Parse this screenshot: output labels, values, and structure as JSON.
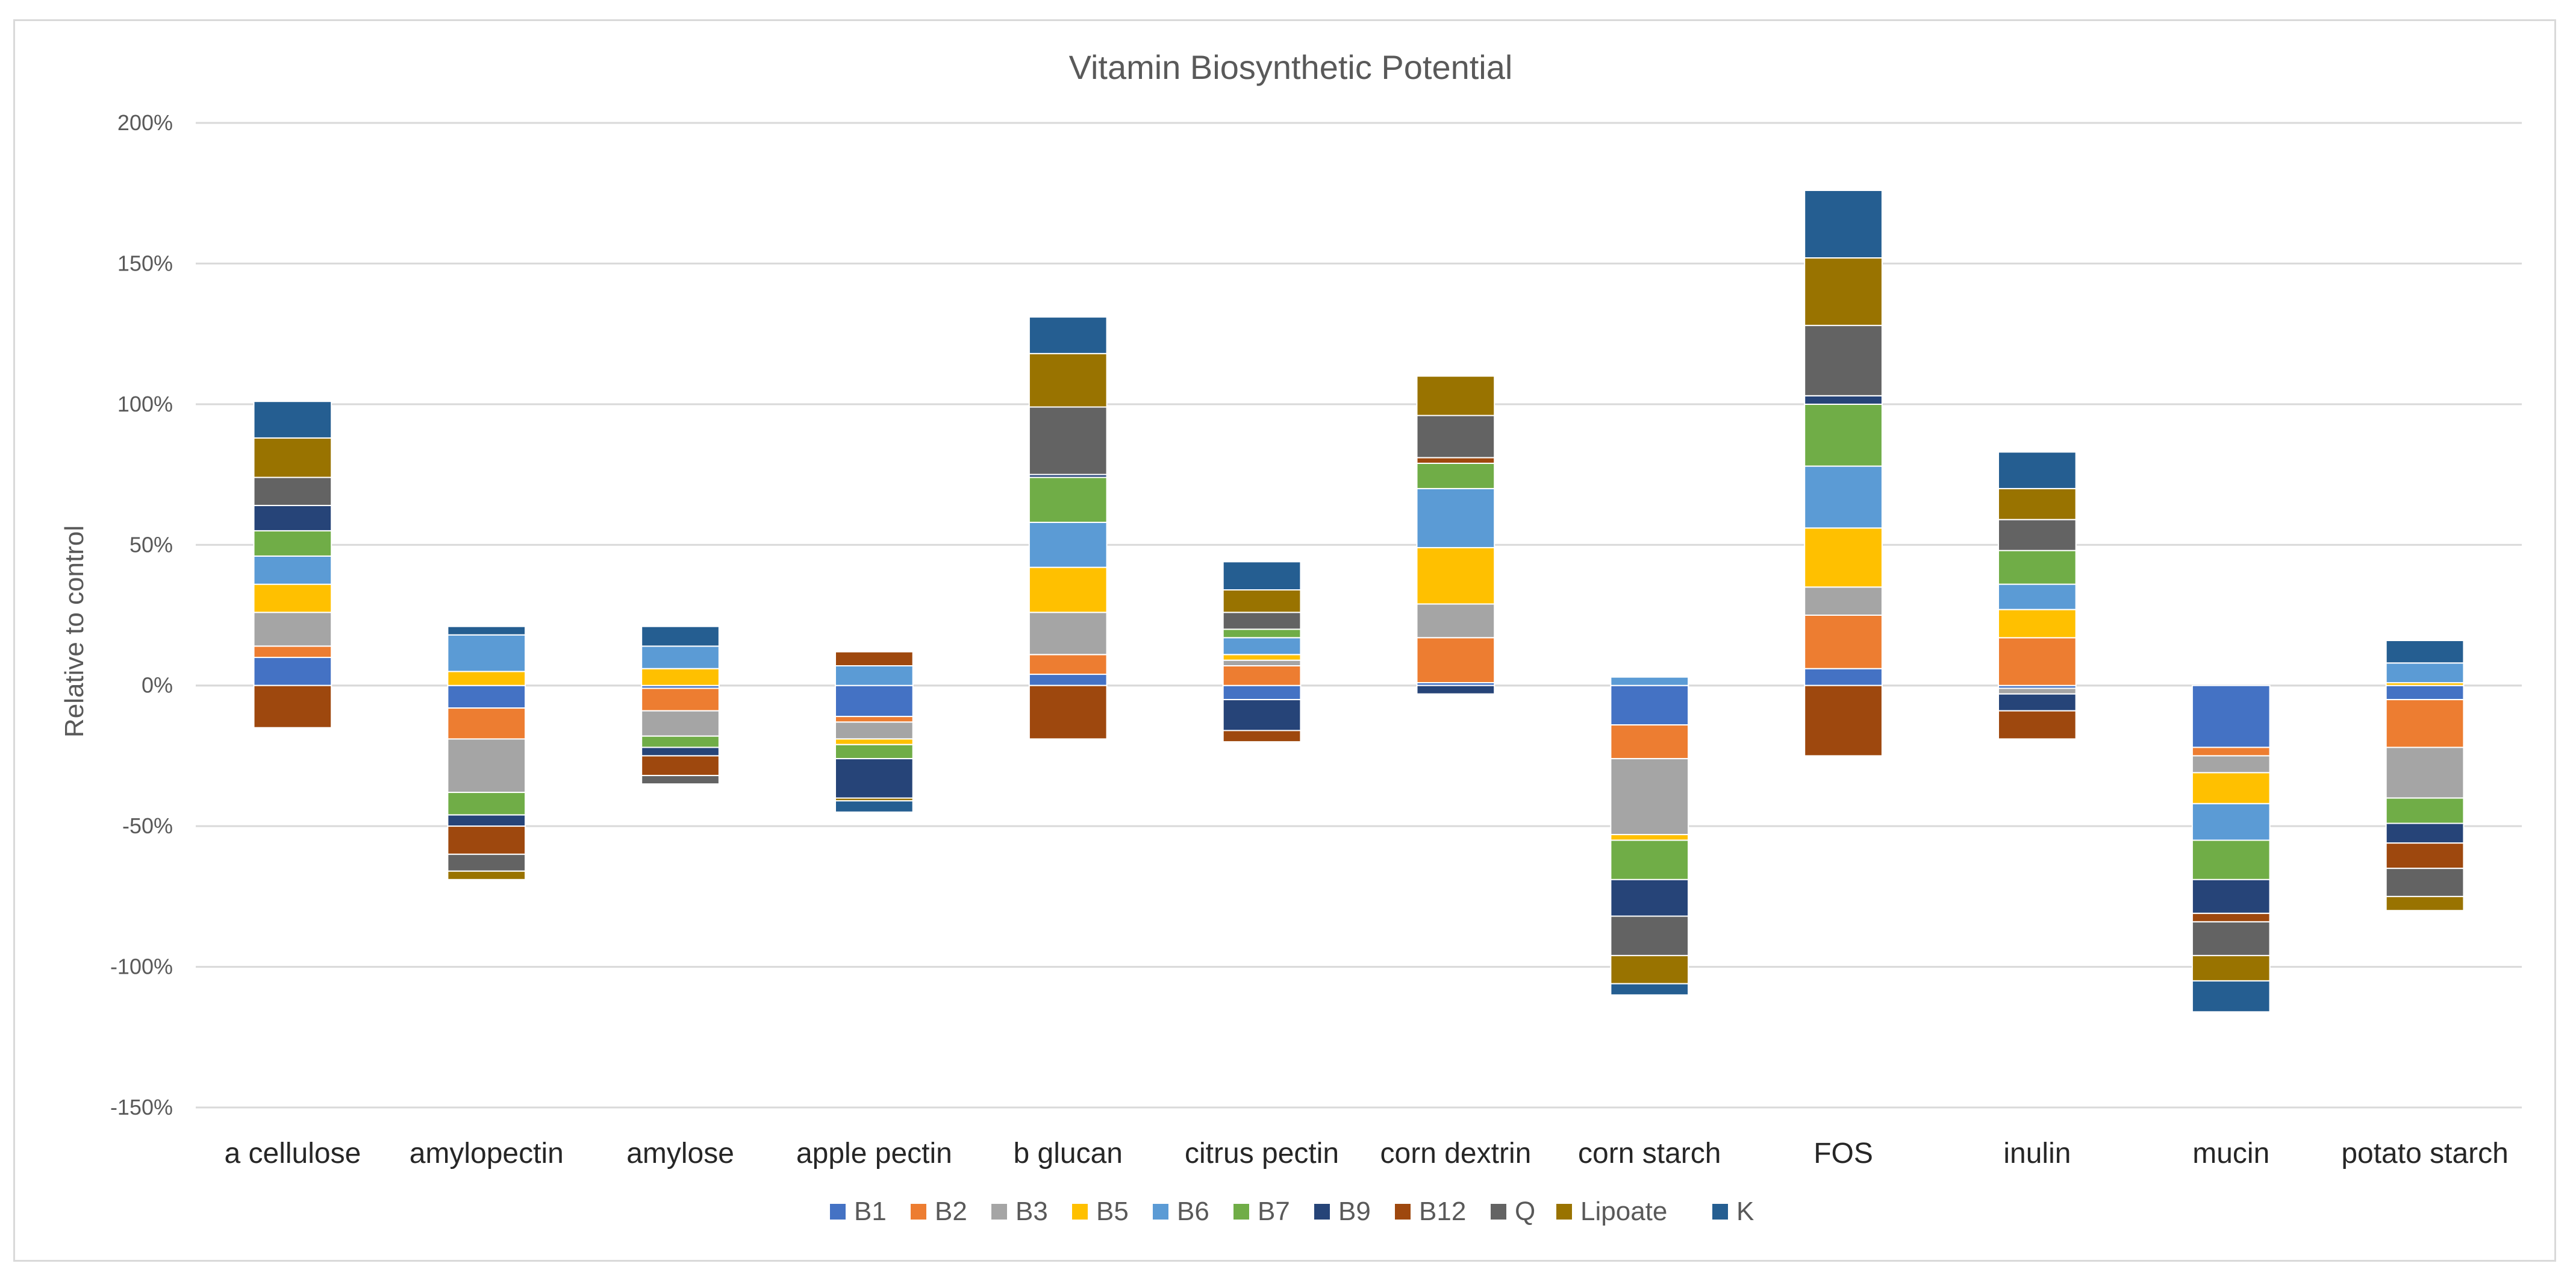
{
  "chart_data": {
    "type": "bar",
    "stacked": true,
    "title": "Vitamin Biosynthetic Potential",
    "xlabel": "",
    "ylabel": "Relative to control",
    "ylim": [
      -150,
      200
    ],
    "yticks": [
      200,
      150,
      100,
      50,
      0,
      -50,
      -100,
      -150
    ],
    "ytick_labels": [
      "200%",
      "150%",
      "100%",
      "50%",
      "0%",
      "-50%",
      "-100%",
      "-150%"
    ],
    "grid": true,
    "legend_position": "bottom",
    "categories": [
      "a cellulose",
      "amylopectin",
      "amylose",
      "apple pectin",
      "b glucan",
      "citrus pectin",
      "corn dextrin",
      "corn starch",
      "FOS",
      "inulin",
      "mucin",
      "potato starch"
    ],
    "series": [
      {
        "name": "B1",
        "color": "#4472C4",
        "values": [
          10,
          -8,
          -1,
          -11,
          4,
          -5,
          1,
          -14,
          6,
          -1,
          -22,
          -5
        ]
      },
      {
        "name": "B2",
        "color": "#ED7D31",
        "values": [
          4,
          -11,
          -8,
          -2,
          7,
          7,
          16,
          -12,
          19,
          17,
          -3,
          -17
        ]
      },
      {
        "name": "B3",
        "color": "#A5A5A5",
        "values": [
          12,
          -19,
          -9,
          -6,
          15,
          2,
          12,
          -27,
          10,
          -2,
          -6,
          -18
        ]
      },
      {
        "name": "B5",
        "color": "#FFC000",
        "values": [
          10,
          5,
          6,
          -2,
          16,
          2,
          20,
          -2,
          21,
          10,
          -11,
          1
        ]
      },
      {
        "name": "B6",
        "color": "#5B9BD5",
        "values": [
          10,
          13,
          8,
          7,
          16,
          6,
          21,
          3,
          22,
          9,
          -13,
          7
        ]
      },
      {
        "name": "B7",
        "color": "#70AD47",
        "values": [
          9,
          -8,
          -4,
          -5,
          16,
          3,
          9,
          -14,
          22,
          12,
          -14,
          -9
        ]
      },
      {
        "name": "B9",
        "color": "#264478",
        "values": [
          9,
          -4,
          -3,
          -14,
          1,
          -11,
          -3,
          -13,
          3,
          -6,
          -12,
          -7
        ]
      },
      {
        "name": "B12",
        "color": "#9E480E",
        "values": [
          -15,
          -10,
          -7,
          5,
          -19,
          -4,
          2,
          0,
          -25,
          -10,
          -3,
          -9
        ]
      },
      {
        "name": "Q",
        "color": "#636363",
        "values": [
          10,
          -6,
          -3,
          0,
          24,
          6,
          15,
          -14,
          25,
          11,
          -12,
          -10
        ]
      },
      {
        "name": "Lipoate",
        "color": "#997300",
        "values": [
          14,
          -3,
          0,
          -1,
          19,
          8,
          14,
          -10,
          24,
          11,
          -9,
          -5
        ]
      },
      {
        "name": "K",
        "color": "#255E91",
        "values": [
          13,
          3,
          7,
          -4,
          13,
          10,
          0,
          -4,
          24,
          13,
          -11,
          8
        ]
      }
    ]
  }
}
